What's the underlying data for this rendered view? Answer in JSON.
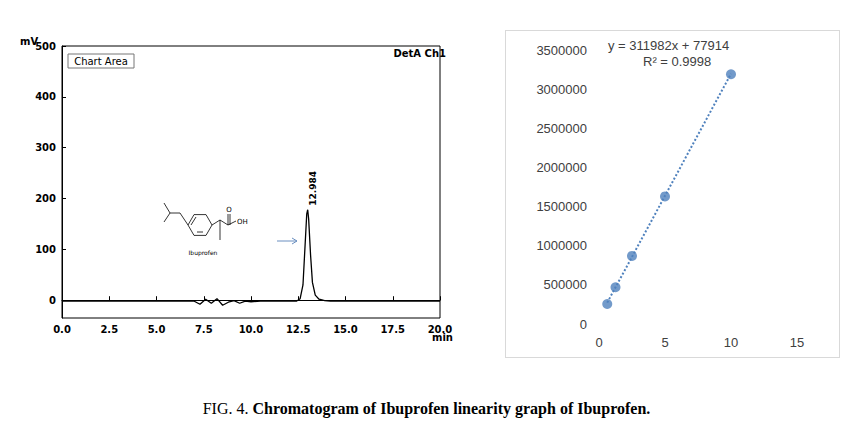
{
  "caption": {
    "label": "FIG. 4.",
    "text": "Chromatogram of Ibuprofen linearity graph of Ibuprofen."
  },
  "chart_data": [
    {
      "type": "line",
      "x_label": "min",
      "y_label": "mV",
      "x": [
        0,
        2,
        4,
        6,
        7,
        7.3,
        7.6,
        7.9,
        8.2,
        8.5,
        8.8,
        9.1,
        9.4,
        9.7,
        10,
        10.5,
        11,
        12,
        12.4,
        12.6,
        12.75,
        12.85,
        12.95,
        13.0,
        13.05,
        13.15,
        13.25,
        13.4,
        13.6,
        13.9,
        14.2,
        15,
        17,
        20
      ],
      "values": [
        -2,
        -2,
        -2,
        -2,
        -2,
        -8,
        2,
        -6,
        3,
        -10,
        -4,
        -1,
        -6,
        -2,
        -3,
        -2,
        -2,
        -2,
        -2,
        3,
        30,
        100,
        170,
        178,
        160,
        90,
        35,
        10,
        2,
        -1,
        -2,
        -2,
        -2,
        -2
      ],
      "color": "#000000",
      "xlim": [
        0,
        20
      ],
      "xticks": [
        {
          "value": 0,
          "label": "0.0"
        },
        {
          "value": 2.5,
          "label": "2.5"
        },
        {
          "value": 5,
          "label": "5.0"
        },
        {
          "value": 7.5,
          "label": "7.5"
        },
        {
          "value": 10,
          "label": "10.0"
        },
        {
          "value": 12.5,
          "label": "12.5"
        },
        {
          "value": 15,
          "label": "15.0"
        },
        {
          "value": 17.5,
          "label": "17.5"
        },
        {
          "value": 20,
          "label": "20.0"
        }
      ],
      "ylim": [
        -35,
        500
      ],
      "yticks": [
        0,
        100,
        200,
        300,
        400,
        500
      ],
      "grid": false,
      "annotations": {
        "box": "Chart Area",
        "detector": "DetA Ch1",
        "peak": "12.984",
        "compound": "Ibuprofen",
        "atoms": [
          "O",
          "OH"
        ]
      }
    },
    {
      "type": "scatter",
      "x": [
        0.625,
        1.25,
        2.5,
        5,
        10
      ],
      "values": [
        255000,
        470000,
        870000,
        1630000,
        3190000
      ],
      "color": "#4f81bd",
      "marker": "circle",
      "xlim": [
        0,
        15
      ],
      "xticks": [
        0,
        5,
        10,
        15
      ],
      "ylim": [
        0,
        3500000
      ],
      "yticks": [
        0,
        500000,
        1000000,
        1500000,
        2000000,
        2500000,
        3000000,
        3500000
      ],
      "grid": false,
      "trendline": {
        "slope": 311982,
        "intercept": 77914,
        "line_style": "dotted",
        "equation": "y = 311982x + 77914",
        "r_squared": "R² = 0.9998"
      }
    }
  ]
}
